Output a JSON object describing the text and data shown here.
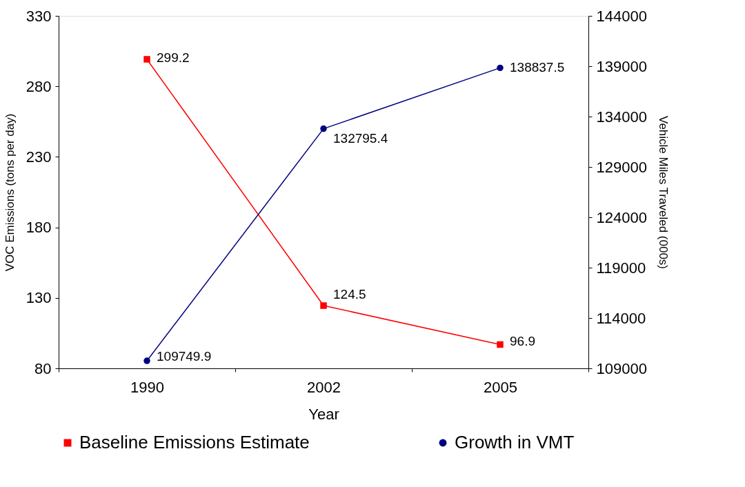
{
  "chart_data": {
    "type": "line",
    "xlabel": "Year",
    "ylabel": "VOC Emissions (tons per day)",
    "y2label": "Vehicle Miles Traveled (000s)",
    "categories": [
      "1990",
      "2002",
      "2005"
    ],
    "series": [
      {
        "name": "Baseline Emissions Estimate",
        "color": "#ff0000",
        "marker": "square",
        "values": [
          299.2,
          124.5,
          96.9
        ]
      },
      {
        "name": "Growth in VMT",
        "color": "#000080",
        "marker": "circle",
        "axis": "y2",
        "values": [
          109749.9,
          132795.4,
          138837.5
        ]
      }
    ],
    "ylim": [
      80,
      330
    ],
    "yticks": [
      80,
      130,
      180,
      230,
      280,
      330
    ],
    "y2lim": [
      109000,
      144000
    ],
    "y2ticks": [
      109000,
      114000,
      119000,
      124000,
      129000,
      134000,
      139000,
      144000
    ],
    "data_labels": true,
    "grid": false,
    "legend": "bottom"
  }
}
